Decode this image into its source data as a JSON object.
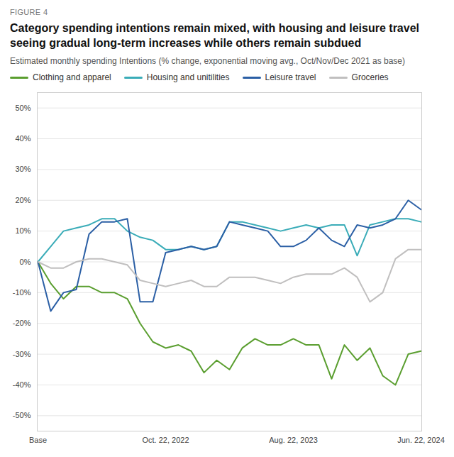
{
  "chart_data": {
    "type": "line",
    "figure_label": "FIGURE 4",
    "title": "Category spending intentions remain mixed, with housing and leisure travel seeing gradual long-term increases while others remain subdued",
    "subtitle": "Estimated monthly spending Intentions (% change, exponential moving avg., Oct/Nov/Dec 2021 as base)",
    "categories": [
      "Base",
      null,
      null,
      null,
      null,
      null,
      null,
      null,
      null,
      null,
      "Oct. 22, 2022",
      null,
      null,
      null,
      null,
      null,
      null,
      null,
      null,
      null,
      "Aug. 22, 2023",
      null,
      null,
      null,
      null,
      null,
      null,
      null,
      null,
      null,
      "Jun. 22, 2024"
    ],
    "series": [
      {
        "name": "Clothing and apparel",
        "color": "#5a9e2f",
        "values": [
          0,
          -7,
          -12,
          -8,
          -8,
          -10,
          -10,
          -12,
          -20,
          -26,
          -28,
          -27,
          -29,
          -36,
          -32,
          -35,
          -28,
          -25,
          -27,
          -27,
          -25,
          -27,
          -27,
          -38,
          -27,
          -32,
          -28,
          -37,
          -40,
          -30,
          -29
        ]
      },
      {
        "name": "Housing and unitilities",
        "color": "#3aacb8",
        "values": [
          0,
          5,
          10,
          11,
          12,
          14,
          14,
          10,
          8,
          7,
          4,
          4,
          5,
          4,
          5,
          13,
          13,
          12,
          11,
          10,
          11,
          12,
          11,
          12,
          12,
          2,
          12,
          13,
          14,
          14,
          13
        ]
      },
      {
        "name": "Leisure travel",
        "color": "#2b5fa5",
        "values": [
          0,
          -16,
          -10,
          -9,
          9,
          13,
          13,
          14,
          -13,
          -13,
          3,
          4,
          5,
          4,
          5,
          13,
          12,
          11,
          10,
          5,
          5,
          7,
          11,
          7,
          5,
          12,
          11,
          12,
          14,
          20,
          17
        ]
      },
      {
        "name": "Groceries",
        "color": "#c0bfbf",
        "values": [
          0,
          -2,
          -2,
          0,
          1,
          1,
          0,
          -1,
          -6,
          -7,
          -8,
          -7,
          -6,
          -8,
          -8,
          -5,
          -5,
          -5,
          -6,
          -7,
          -5,
          -4,
          -4,
          -4,
          -2,
          -5,
          -13,
          -10,
          1,
          4,
          4
        ]
      }
    ],
    "ylim": [
      -55,
      55
    ],
    "yticks": [
      {
        "value": -50,
        "label": "-50%"
      },
      {
        "value": -40,
        "label": "-40%"
      },
      {
        "value": -30,
        "label": "-30%"
      },
      {
        "value": -20,
        "label": "-20%"
      },
      {
        "value": -10,
        "label": "-10%"
      },
      {
        "value": 0,
        "label": "0%"
      },
      {
        "value": 10,
        "label": "10%"
      },
      {
        "value": 20,
        "label": "20%"
      },
      {
        "value": 30,
        "label": "30%"
      },
      {
        "value": 40,
        "label": "40%"
      },
      {
        "value": 50,
        "label": "50%"
      }
    ],
    "grid": true,
    "legend": "top"
  }
}
